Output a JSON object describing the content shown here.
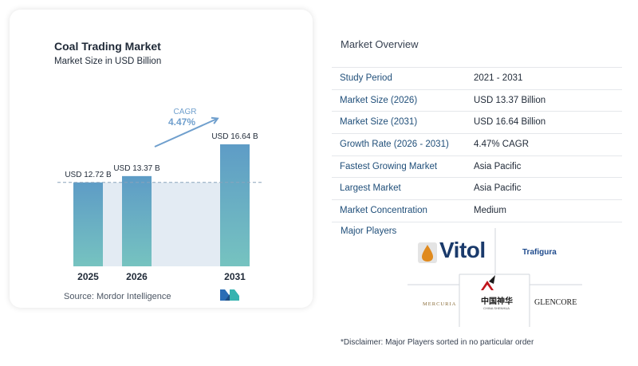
{
  "chart_data": {
    "type": "bar",
    "title": "Coal Trading Market",
    "subtitle": "Market Size in USD Billion",
    "categories": [
      "2025",
      "2026",
      "2031"
    ],
    "values": [
      12.72,
      13.37,
      16.64
    ],
    "value_labels": [
      "USD 12.72 B",
      "USD 13.37 B",
      "USD 16.64 B"
    ],
    "cagr_label": "CAGR",
    "cagr_value": "4.47%",
    "colors": {
      "bar_top": "#5e9cc6",
      "bar_bottom": "#76c3c0",
      "gap_fill": "#e3ebf3",
      "arrow": "#6f9fcd",
      "dashed": "#8aa4bb"
    }
  },
  "source": {
    "label": "Source:",
    "name": "Mordor Intelligence",
    "logo_icon": "mordor-logo-icon"
  },
  "overview": {
    "title": "Market Overview",
    "rows": [
      {
        "label": "Study Period",
        "value": "2021 - 2031"
      },
      {
        "label": "Market Size (2026)",
        "value": "USD 13.37 Billion"
      },
      {
        "label": "Market Size (2031)",
        "value": "USD 16.64 Billion"
      },
      {
        "label": "Growth Rate (2026 - 2031)",
        "value": "4.47% CAGR"
      },
      {
        "label": "Fastest Growing Market",
        "value": "Asia Pacific"
      },
      {
        "label": "Largest Market",
        "value": "Asia Pacific"
      },
      {
        "label": "Market Concentration",
        "value": "Medium"
      }
    ]
  },
  "players": {
    "title": "Major Players",
    "logos": {
      "vitol": "Vitol",
      "trafigura": "Trafigura",
      "mercuria": "MERCURIA",
      "shenhua": "中国神华",
      "shenhua_sub": "CHINA SHENHUA",
      "glencore": "GLENCORE"
    }
  },
  "disclaimer": "*Disclaimer: Major Players sorted in no particular order"
}
